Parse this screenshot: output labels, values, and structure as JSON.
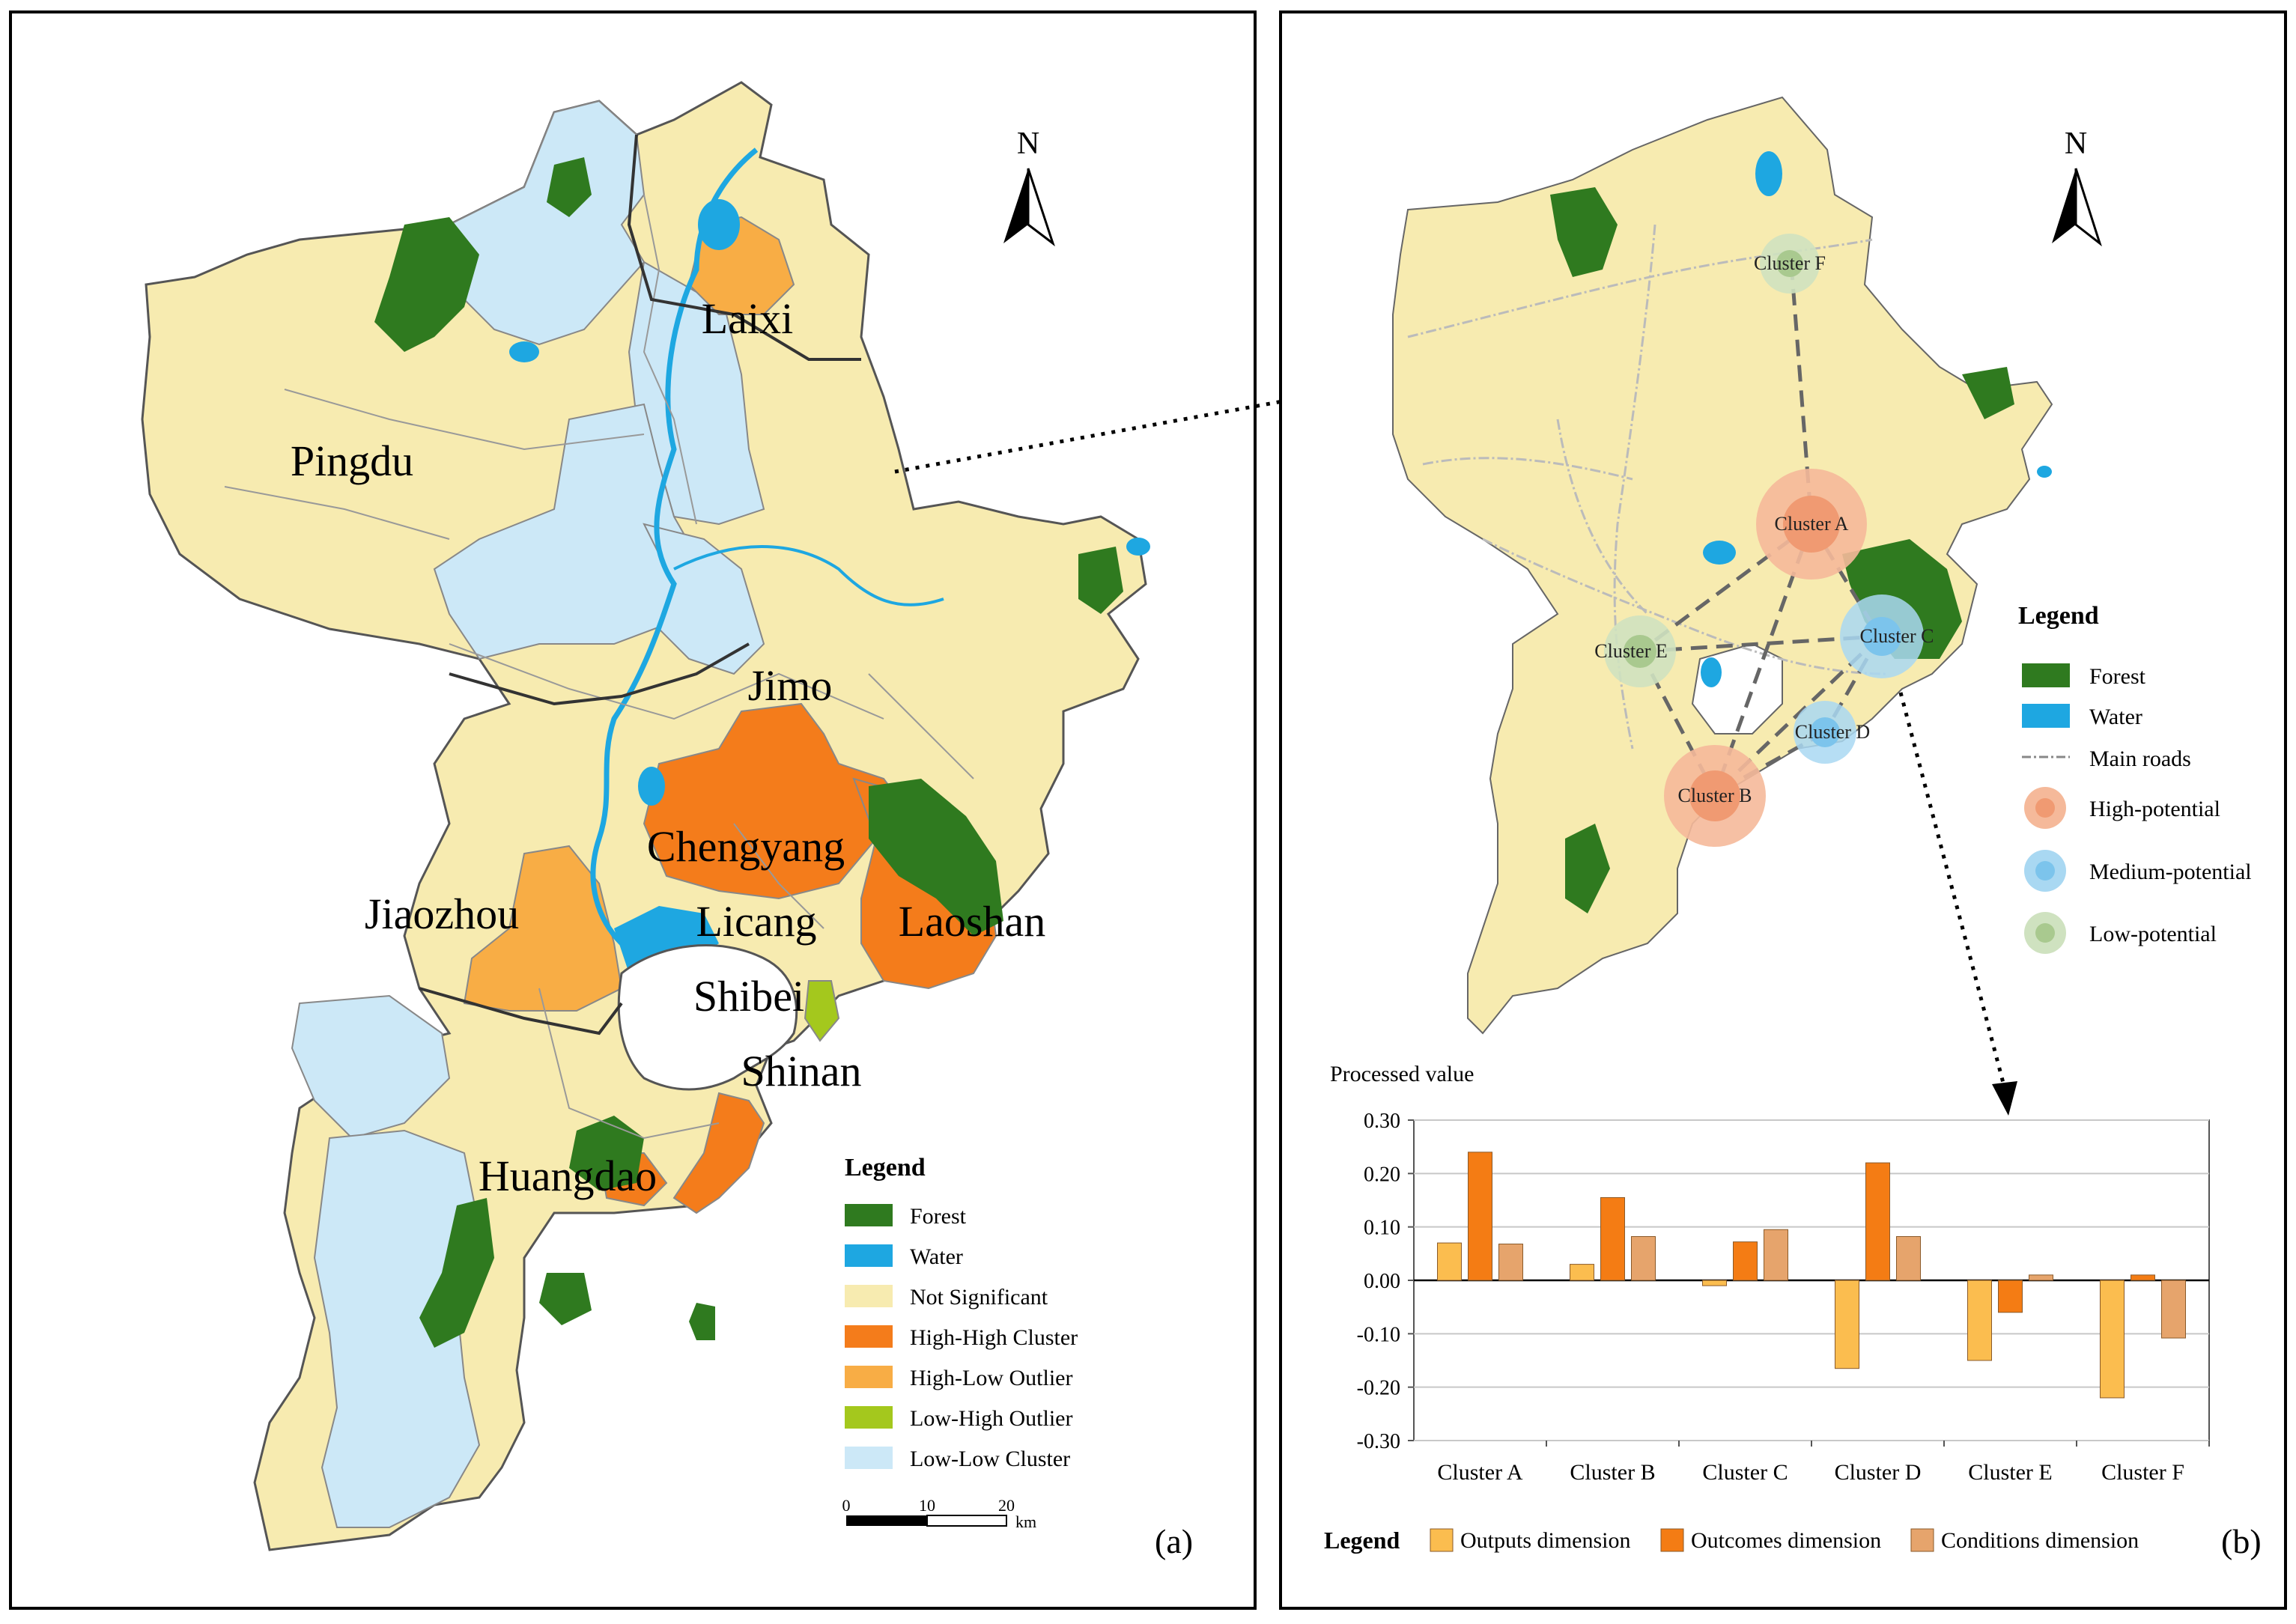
{
  "panel_a": {
    "label": "(a)",
    "north": "N",
    "districts": [
      "Pingdu",
      "Laixi",
      "Jimo",
      "Chengyang",
      "Jiaozhou",
      "Licang",
      "Laoshan",
      "Shibei",
      "Shinan",
      "Huangdao"
    ],
    "legend": {
      "title": "Legend",
      "items": [
        {
          "label": "Forest",
          "color": "#2f7a1f"
        },
        {
          "label": "Water",
          "color": "#1ea7e1"
        },
        {
          "label": "Not Significant",
          "color": "#f7ebb0"
        },
        {
          "label": "High-High Cluster",
          "color": "#f47c1b"
        },
        {
          "label": "High-Low Outlier",
          "color": "#f8ad45"
        },
        {
          "label": "Low-High Outlier",
          "color": "#a4c81d"
        },
        {
          "label": "Low-Low Cluster",
          "color": "#cce8f7"
        }
      ]
    },
    "scalebar": {
      "ticks": [
        "0",
        "10",
        "20"
      ],
      "unit": "km"
    }
  },
  "panel_b": {
    "label": "(b)",
    "north": "N",
    "clusters": [
      {
        "name": "Cluster A",
        "potential": "high"
      },
      {
        "name": "Cluster B",
        "potential": "high"
      },
      {
        "name": "Cluster C",
        "potential": "medium"
      },
      {
        "name": "Cluster D",
        "potential": "medium"
      },
      {
        "name": "Cluster E",
        "potential": "low"
      },
      {
        "name": "Cluster F",
        "potential": "low"
      }
    ],
    "legend": {
      "title": "Legend",
      "items": [
        "Forest",
        "Water",
        "Main roads",
        "High-potential",
        "Medium-potential",
        "Low-potential"
      ]
    }
  },
  "chart_data": {
    "type": "bar",
    "ylabel": "Processed value",
    "ylim": [
      -0.3,
      0.3
    ],
    "yticks": [
      "0.30",
      "0.20",
      "0.10",
      "0.00",
      "-0.10",
      "-0.20",
      "-0.30"
    ],
    "categories": [
      "Cluster A",
      "Cluster B",
      "Cluster C",
      "Cluster D",
      "Cluster E",
      "Cluster F"
    ],
    "series": [
      {
        "name": "Outputs dimension",
        "color": "#fbbd4f",
        "values": [
          0.07,
          0.03,
          -0.01,
          -0.165,
          -0.15,
          -0.22
        ]
      },
      {
        "name": "Outcomes dimension",
        "color": "#f47c14",
        "values": [
          0.24,
          0.155,
          0.072,
          0.22,
          -0.06,
          0.01
        ]
      },
      {
        "name": "Conditions dimension",
        "color": "#e6a46c",
        "values": [
          0.068,
          0.082,
          0.095,
          0.082,
          0.01,
          -0.108
        ]
      }
    ],
    "legend_title": "Legend",
    "grid": true
  }
}
